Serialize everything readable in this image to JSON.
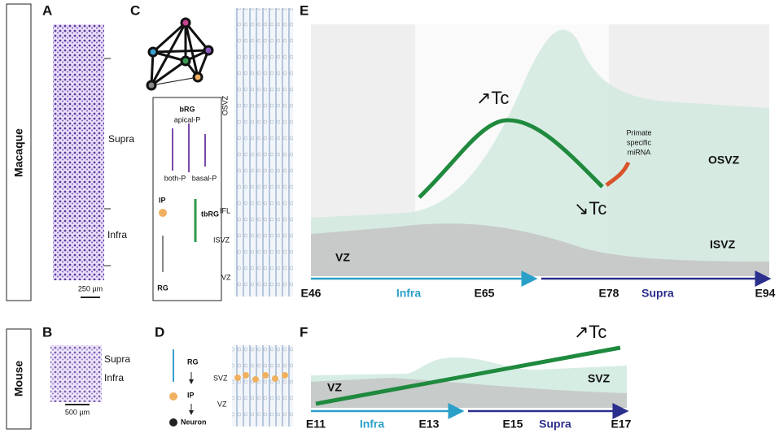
{
  "side_labels": [
    "Macaque",
    "Mouse"
  ],
  "panels": {
    "A": {
      "letter": "A",
      "layers": [
        "Supra",
        "Infra"
      ],
      "scale": "250 µm"
    },
    "B": {
      "letter": "B",
      "layers": [
        "Supra",
        "Infra"
      ],
      "scale": "500 µm"
    },
    "C": {
      "letter": "C",
      "cells": [
        "bRG",
        "apical-P",
        "both-P",
        "basal-P",
        "IP",
        "tbRG",
        "RG"
      ],
      "zones": [
        "OSVZ",
        "IFL",
        "ISVZ",
        "VZ"
      ]
    },
    "D": {
      "letter": "D",
      "cells": [
        "RG",
        "IP",
        "Neuron"
      ],
      "zones": [
        "SVZ",
        "VZ"
      ]
    },
    "E": {
      "letter": "E",
      "tc_up": "↗Tc",
      "tc_down": "↘Tc",
      "mirna": [
        "Primate",
        "specific",
        "miRNA"
      ],
      "zones": [
        "OSVZ",
        "ISVZ",
        "VZ"
      ],
      "axis": [
        "E46",
        "E65",
        "E78",
        "E94"
      ],
      "layers": [
        "Infra",
        "Supra"
      ]
    },
    "F": {
      "letter": "F",
      "tc_up": "↗Tc",
      "zones": [
        "VZ",
        "SVZ"
      ],
      "axis": [
        "E11",
        "E13",
        "E15",
        "E17"
      ],
      "layers": [
        "Infra",
        "Supra"
      ]
    }
  }
}
